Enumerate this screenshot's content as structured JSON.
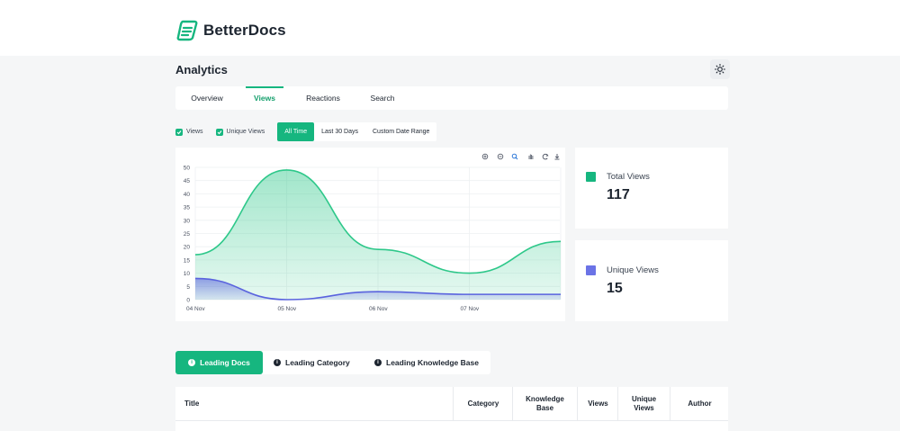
{
  "brand": {
    "name": "BetterDocs",
    "color": "#16b67f"
  },
  "page": {
    "title": "Analytics"
  },
  "tabs": [
    {
      "label": "Overview",
      "active": false
    },
    {
      "label": "Views",
      "active": true
    },
    {
      "label": "Reactions",
      "active": false
    },
    {
      "label": "Search",
      "active": false
    }
  ],
  "filters": {
    "checkboxes": [
      {
        "label": "Views",
        "checked": true
      },
      {
        "label": "Unique Views",
        "checked": true
      }
    ],
    "ranges": [
      {
        "label": "All Time",
        "active": true
      },
      {
        "label": "Last 30 Days",
        "active": false
      },
      {
        "label": "Custom Date Range",
        "active": false
      }
    ]
  },
  "toolbar_icons": [
    "zoom-in-icon",
    "zoom-out-icon",
    "magnify-icon",
    "pan-hand-icon",
    "reset-icon",
    "download-icon"
  ],
  "stats": [
    {
      "label": "Total Views",
      "value": "117",
      "color": "#16b67f"
    },
    {
      "label": "Unique Views",
      "value": "15",
      "color": "#6b73e6"
    }
  ],
  "chart_data": {
    "type": "area",
    "x": [
      "04 Nov",
      "05 Nov",
      "06 Nov",
      "07 Nov",
      "08 Nov"
    ],
    "xticks": [
      "04 Nov",
      "05 Nov",
      "06 Nov",
      "07 Nov"
    ],
    "series": [
      {
        "name": "Views",
        "values": [
          17,
          49,
          19,
          10,
          22
        ],
        "color": "#2ec88a"
      },
      {
        "name": "Unique Views",
        "values": [
          8,
          0,
          3,
          2,
          2
        ],
        "color": "#5a63de"
      }
    ],
    "yticks": [
      0,
      5,
      10,
      15,
      20,
      25,
      30,
      35,
      40,
      45,
      50
    ],
    "ylim": [
      0,
      50
    ],
    "grid": true
  },
  "leading": {
    "tabs": [
      {
        "label": "Leading Docs",
        "active": true
      },
      {
        "label": "Leading Category",
        "active": false
      },
      {
        "label": "Leading Knowledge Base",
        "active": false
      }
    ]
  },
  "table": {
    "columns": [
      "Title",
      "Category",
      "Knowledge Base",
      "Views",
      "Unique Views",
      "Author"
    ]
  }
}
